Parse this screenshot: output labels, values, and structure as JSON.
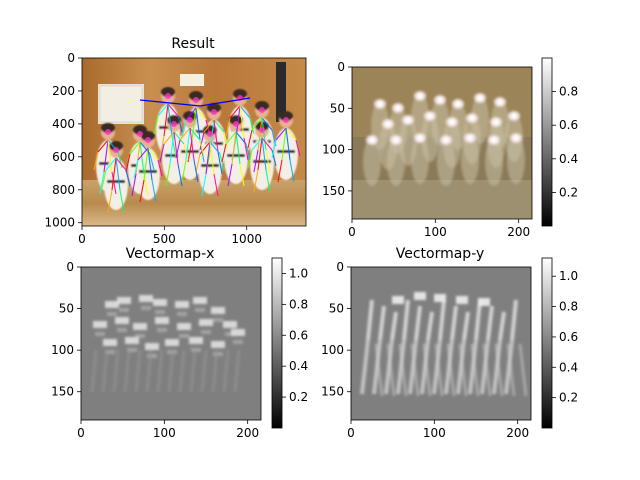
{
  "chart_data": [
    {
      "type": "heatmap",
      "title": "Result",
      "content": "photo-with-pose-skeleton",
      "x_ticks": [
        0,
        500,
        1000
      ],
      "y_ticks": [
        0,
        200,
        400,
        600,
        800,
        1000
      ],
      "xlim": [
        0,
        1360
      ],
      "ylim": [
        1020,
        0
      ],
      "colorbar": false
    },
    {
      "type": "heatmap",
      "title": "",
      "content": "heatmap-overlay",
      "x_ticks": [
        0,
        100,
        200
      ],
      "y_ticks": [
        0,
        50,
        100,
        150
      ],
      "xlim": [
        0,
        216
      ],
      "ylim": [
        184,
        0
      ],
      "colorbar": true,
      "colorbar_ticks": [
        0.2,
        0.4,
        0.6,
        0.8
      ],
      "colorbar_range": [
        0,
        1
      ],
      "colormap": "gray"
    },
    {
      "type": "heatmap",
      "title": "Vectormap-x",
      "content": "paf-x",
      "x_ticks": [
        0,
        100,
        200
      ],
      "y_ticks": [
        0,
        50,
        100,
        150
      ],
      "xlim": [
        0,
        216
      ],
      "ylim": [
        184,
        0
      ],
      "colorbar": true,
      "colorbar_ticks": [
        0.2,
        0.4,
        0.6,
        0.8,
        1.0
      ],
      "colorbar_range": [
        0.0,
        1.1
      ],
      "colormap": "gray"
    },
    {
      "type": "heatmap",
      "title": "Vectormap-y",
      "content": "paf-y",
      "x_ticks": [
        0,
        100,
        200
      ],
      "y_ticks": [
        0,
        50,
        100,
        150
      ],
      "xlim": [
        0,
        216
      ],
      "ylim": [
        184,
        0
      ],
      "colorbar": true,
      "colorbar_ticks": [
        0.2,
        0.4,
        0.6,
        0.8,
        1.0
      ],
      "colorbar_range": [
        0.0,
        1.12
      ],
      "colormap": "gray"
    }
  ]
}
